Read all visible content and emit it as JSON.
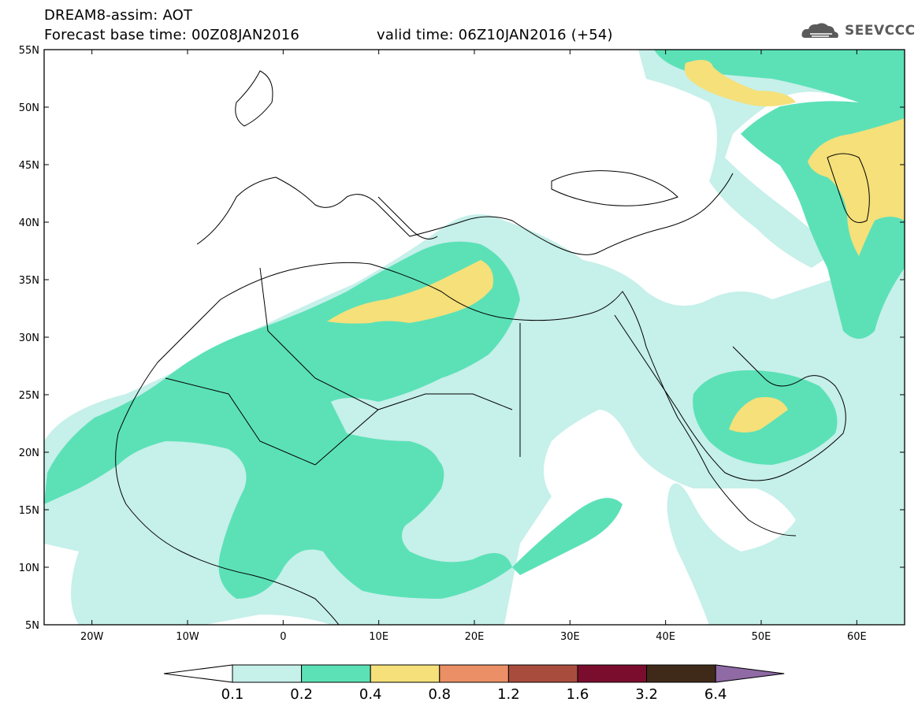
{
  "header": {
    "title_line1": "DREAM8-assim: AOT",
    "title_line2": "Forecast base time: 00Z08JAN2016",
    "valid_time": "valid time: 06Z10JAN2016 (+54)"
  },
  "logo": {
    "text": "SEEVCCC",
    "icon": "cloud-logo-icon"
  },
  "map": {
    "lat_labels": [
      "55N",
      "50N",
      "45N",
      "40N",
      "35N",
      "30N",
      "25N",
      "20N",
      "15N",
      "10N",
      "5N"
    ],
    "lon_labels": [
      "20W",
      "10W",
      "0",
      "10E",
      "20E",
      "30E",
      "40E",
      "50E",
      "60E"
    ],
    "lon_range": [
      -25,
      65
    ],
    "lat_range": [
      5,
      55
    ]
  },
  "colorbar": {
    "labels": [
      "0.1",
      "0.2",
      "0.4",
      "0.8",
      "1.2",
      "1.6",
      "3.2",
      "6.4"
    ],
    "colors": [
      "#ffffff",
      "#c6f0ea",
      "#5ce1b7",
      "#f5e07a",
      "#ea8f66",
      "#a84d3d",
      "#7a0d2e",
      "#3f2a1a",
      "#8f6aa5"
    ]
  }
}
